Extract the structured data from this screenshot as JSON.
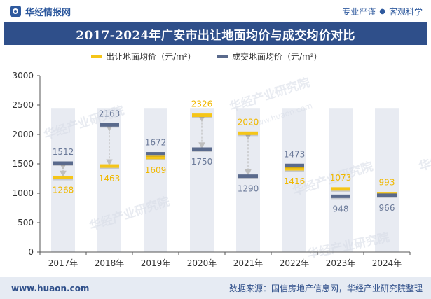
{
  "header": {
    "brand": "华经情报网",
    "tagline_left": "专业严谨",
    "tagline_sep": "●",
    "tagline_right": "客观科学"
  },
  "chart_data": {
    "type": "dumbbell",
    "title": "2017-2024年广安市出让地面均价与成交均价对比",
    "categories": [
      "2017年",
      "2018年",
      "2019年",
      "2020年",
      "2021年",
      "2022年",
      "2023年",
      "2024年"
    ],
    "series": [
      {
        "name": "出让地面均价（元/m²）",
        "color": "#f5c518",
        "label_color": "#f0b800",
        "values": [
          1268,
          1463,
          1609,
          2326,
          2020,
          1416,
          1073,
          993
        ]
      },
      {
        "name": "成交地面均价（元/m²）",
        "color": "#5a6a8c",
        "label_color": "#6b7a99",
        "values": [
          1512,
          2163,
          1672,
          1750,
          1290,
          1473,
          948,
          966
        ]
      }
    ],
    "ylim": [
      0,
      3000
    ],
    "yticks": [
      0,
      500,
      1000,
      1500,
      2000,
      2500,
      3000
    ],
    "legend_position": "top-center",
    "grid": false
  },
  "watermark": "华经产业研究院",
  "watermark_url": "www.huaon.com",
  "footer": {
    "website": "www.huaon.com",
    "source": "数据来源：国信房地产信息网，华经产业研究院整理"
  }
}
